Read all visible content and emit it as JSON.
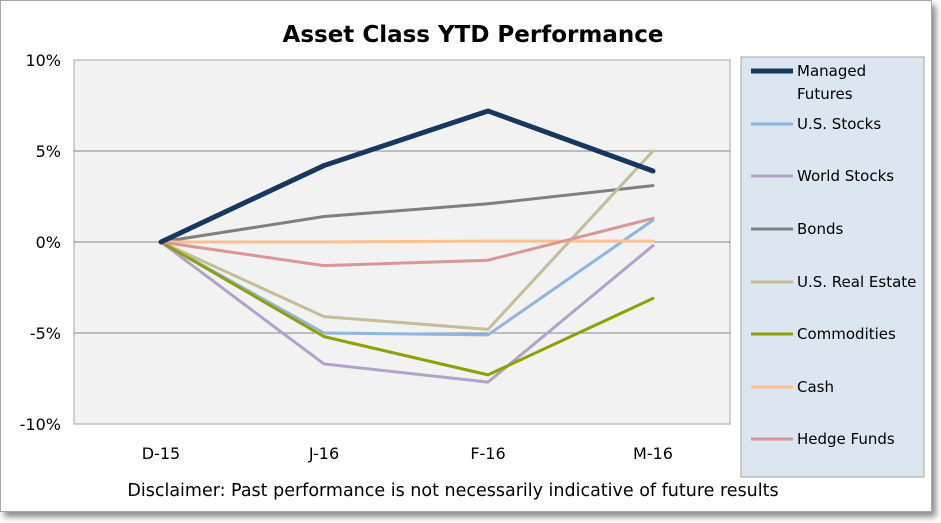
{
  "chart_data": {
    "type": "line",
    "title": "Asset Class YTD Performance",
    "categories": [
      "D-15",
      "J-16",
      "F-16",
      "M-16"
    ],
    "ylim": [
      -10,
      10
    ],
    "yticks": [
      10,
      5,
      0,
      -5,
      -10
    ],
    "ytick_labels": [
      "10%",
      "5%",
      "0%",
      "-5%",
      "-10%"
    ],
    "grid": true,
    "legend_position": "right",
    "series": [
      {
        "name": "Managed Futures",
        "values": [
          0,
          4.2,
          7.2,
          3.9
        ],
        "color": "#17375e",
        "emphasis": true
      },
      {
        "name": "U.S. Stocks",
        "values": [
          0,
          -5.0,
          -5.1,
          1.2
        ],
        "color": "#8db4e2"
      },
      {
        "name": "World Stocks",
        "values": [
          0,
          -6.7,
          -7.7,
          -0.2
        ],
        "color": "#b3a2c7"
      },
      {
        "name": "Bonds",
        "values": [
          0,
          1.4,
          2.1,
          3.1
        ],
        "color": "#7f7f7f"
      },
      {
        "name": "U.S. Real Estate",
        "values": [
          0,
          -4.1,
          -4.8,
          5.0
        ],
        "color": "#c4bd97"
      },
      {
        "name": "Commodities",
        "values": [
          0,
          -5.2,
          -7.3,
          -3.1
        ],
        "color": "#8ea100"
      },
      {
        "name": "Cash",
        "values": [
          0,
          0.0,
          0.05,
          0.05
        ],
        "color": "#fac090"
      },
      {
        "name": "Hedge Funds",
        "values": [
          0,
          -1.3,
          -1.0,
          1.3
        ],
        "color": "#d99694"
      }
    ],
    "disclaimer": "Disclaimer: Past performance is not necessarily indicative of future results"
  }
}
